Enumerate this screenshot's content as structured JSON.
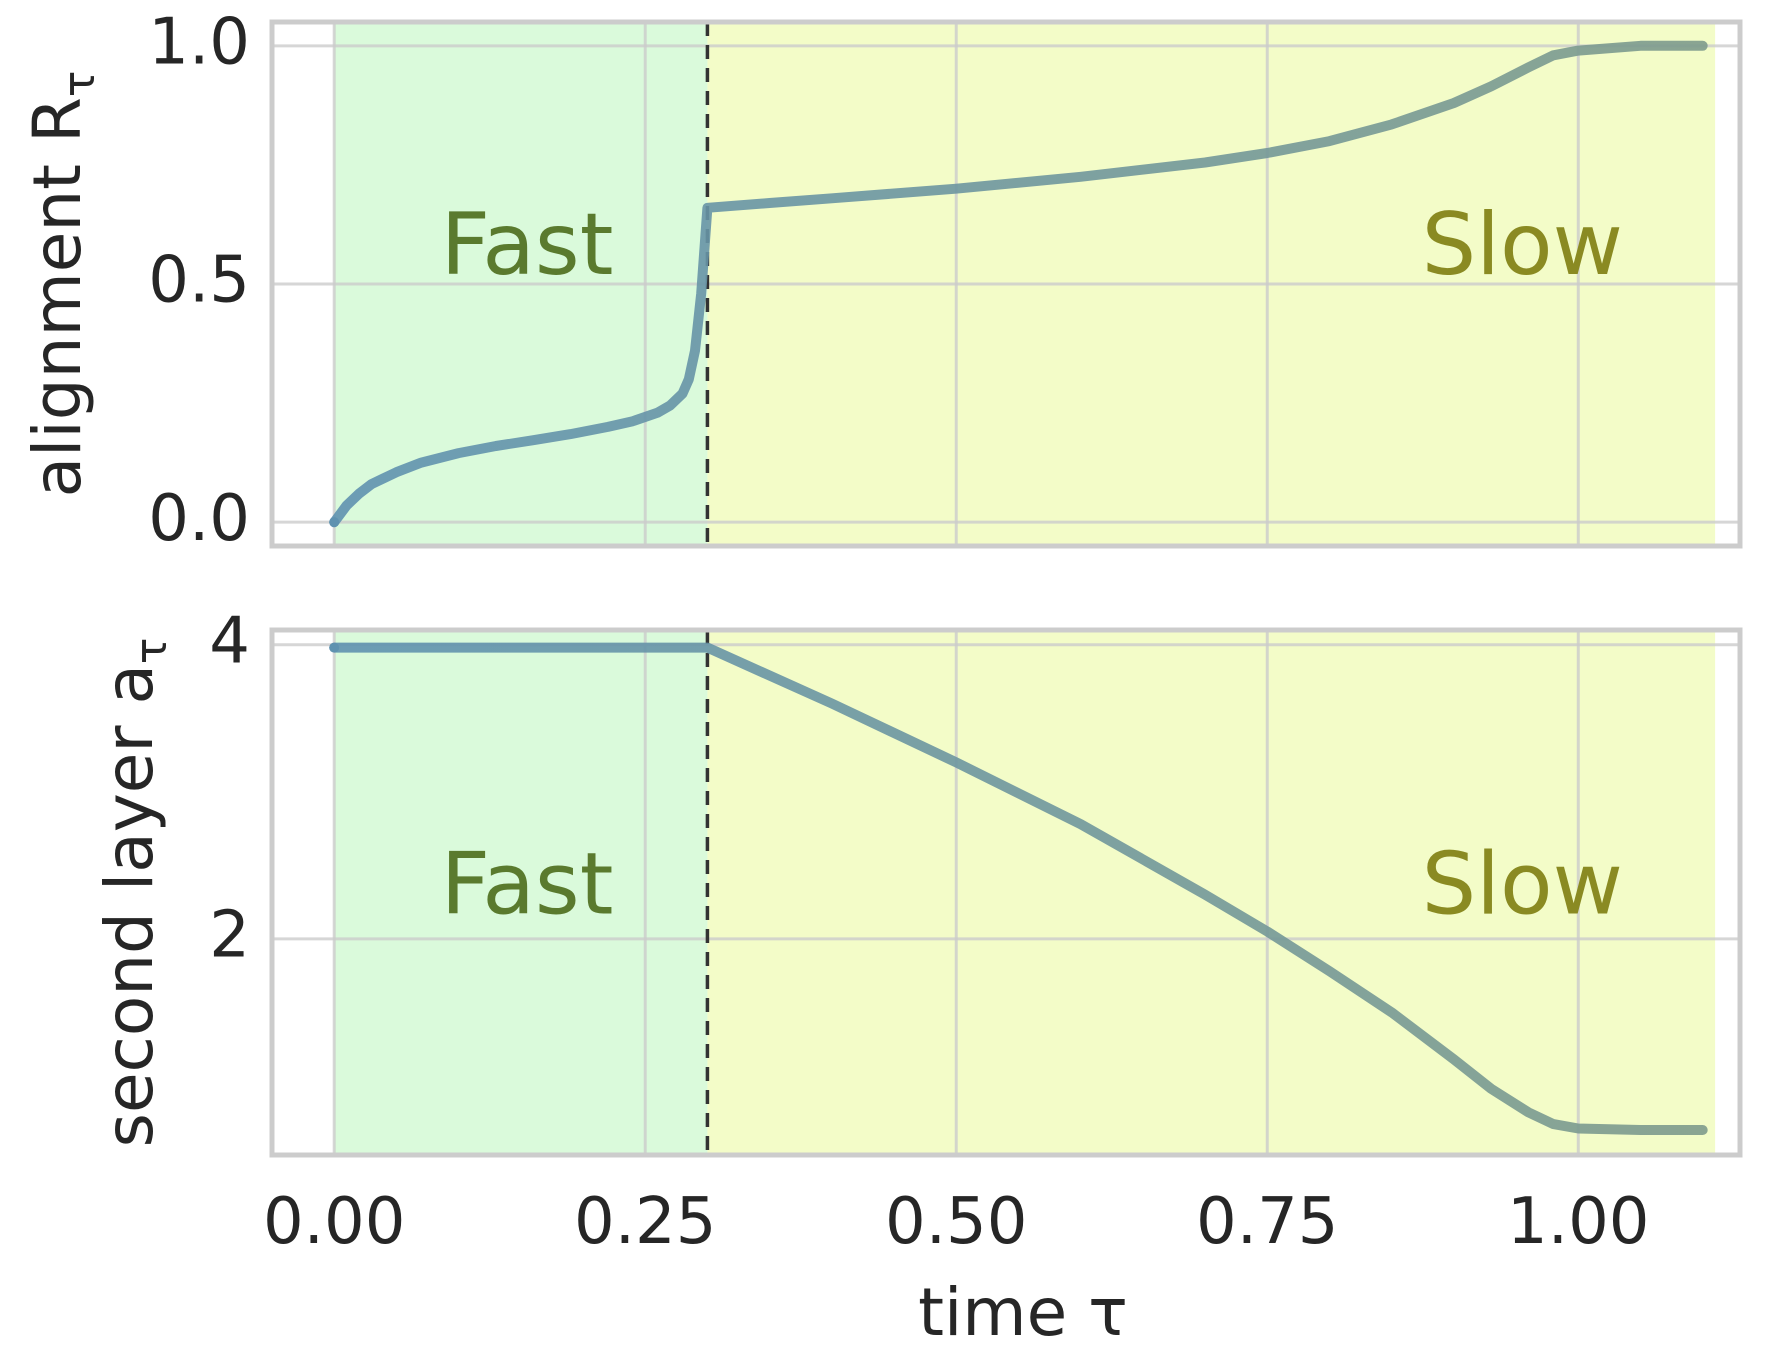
{
  "chart_data": [
    {
      "type": "line",
      "xlabel": "",
      "ylabel": "alignment R",
      "ylabel_subscript": "τ",
      "xlim": [
        -0.05,
        1.13
      ],
      "ylim": [
        -0.05,
        1.05
      ],
      "xticks": [
        0.0,
        0.25,
        0.5,
        0.75,
        1.0
      ],
      "yticks": [
        0.0,
        0.5,
        1.0
      ],
      "ytick_labels": [
        "0.0",
        "0.5",
        "1.0"
      ],
      "grid": true,
      "phase_boundary": 0.3,
      "regions": [
        {
          "label": "Fast",
          "from": 0.0,
          "to": 0.3,
          "fill": "#dafadb",
          "text_color": "#5a7a2e",
          "label_x": 0.155,
          "label_y": 0.57
        },
        {
          "label": "Slow",
          "from": 0.3,
          "to": 1.11,
          "fill": "#f3fcc8",
          "text_color": "#8a8a22",
          "label_x": 0.955,
          "label_y": 0.57
        }
      ],
      "series": [
        {
          "x": [
            0.0,
            0.01,
            0.02,
            0.03,
            0.05,
            0.07,
            0.1,
            0.13,
            0.16,
            0.19,
            0.22,
            0.24,
            0.26,
            0.27,
            0.28,
            0.285,
            0.29,
            0.295,
            0.3,
            0.35,
            0.4,
            0.5,
            0.6,
            0.7,
            0.75,
            0.8,
            0.85,
            0.9,
            0.93,
            0.96,
            0.98,
            1.0,
            1.05,
            1.1
          ],
          "y": [
            0.0,
            0.035,
            0.06,
            0.08,
            0.105,
            0.125,
            0.145,
            0.16,
            0.172,
            0.185,
            0.2,
            0.212,
            0.23,
            0.245,
            0.27,
            0.3,
            0.36,
            0.48,
            0.66,
            0.67,
            0.68,
            0.7,
            0.725,
            0.755,
            0.775,
            0.8,
            0.835,
            0.88,
            0.915,
            0.955,
            0.98,
            0.99,
            1.0,
            1.0
          ],
          "stroke_from": "#5f92b0",
          "stroke_to": "#7e9b8c"
        }
      ]
    },
    {
      "type": "line",
      "xlabel": "time τ",
      "ylabel": "second layer a",
      "ylabel_subscript": "τ",
      "xlim": [
        -0.05,
        1.13
      ],
      "ylim": [
        0.53,
        4.1
      ],
      "xticks": [
        0.0,
        0.25,
        0.5,
        0.75,
        1.0
      ],
      "xtick_labels": [
        "0.00",
        "0.25",
        "0.50",
        "0.75",
        "1.00"
      ],
      "yticks": [
        2,
        4
      ],
      "ytick_labels": [
        "2",
        "4"
      ],
      "grid": true,
      "phase_boundary": 0.3,
      "regions": [
        {
          "label": "Fast",
          "from": 0.0,
          "to": 0.3,
          "fill": "#dafadb",
          "text_color": "#5a7a2e",
          "label_x": 0.155,
          "label_y": 2.33
        },
        {
          "label": "Slow",
          "from": 0.3,
          "to": 1.11,
          "fill": "#f3fcc8",
          "text_color": "#8a8a22",
          "label_x": 0.955,
          "label_y": 2.33
        }
      ],
      "series": [
        {
          "x": [
            0.0,
            0.1,
            0.2,
            0.3,
            0.4,
            0.5,
            0.6,
            0.7,
            0.75,
            0.8,
            0.85,
            0.9,
            0.93,
            0.96,
            0.98,
            1.0,
            1.05,
            1.1
          ],
          "y": [
            3.98,
            3.98,
            3.98,
            3.98,
            3.6,
            3.2,
            2.78,
            2.3,
            2.05,
            1.78,
            1.5,
            1.18,
            0.98,
            0.82,
            0.74,
            0.71,
            0.7,
            0.7
          ],
          "stroke_from": "#5f92b0",
          "stroke_to": "#7e9b8c"
        }
      ]
    }
  ]
}
